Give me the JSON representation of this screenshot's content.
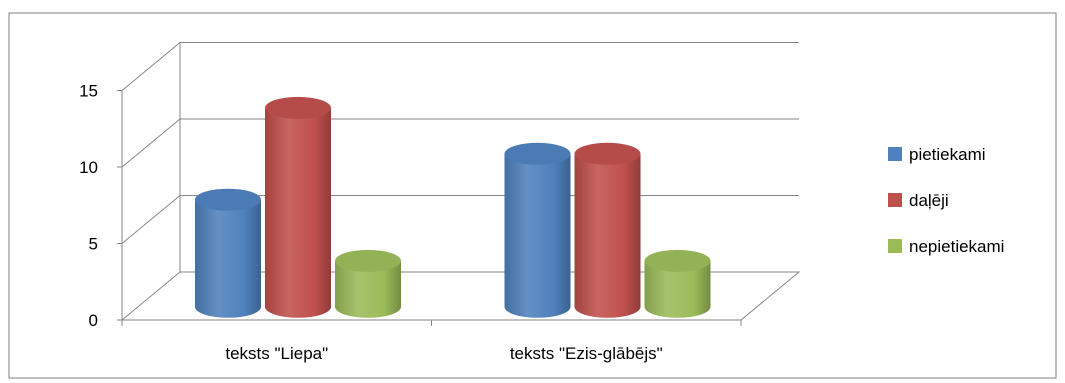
{
  "chart_data": {
    "type": "bar",
    "style": "3d-cylinder",
    "categories": [
      "teksts \"Liepa\"",
      "teksts \"Ezis-glābējs\""
    ],
    "series": [
      {
        "name": "pietiekami",
        "values": [
          7,
          10
        ],
        "color": "#4f81bd"
      },
      {
        "name": "daļēji",
        "values": [
          13,
          10
        ],
        "color": "#c0504d"
      },
      {
        "name": "nepietiekami",
        "values": [
          3,
          3
        ],
        "color": "#9bbb59"
      }
    ],
    "y_ticks": [
      "0",
      "5",
      "10",
      "15"
    ],
    "ylim": [
      0,
      15
    ],
    "grid": true,
    "legend_position": "right",
    "title": "",
    "xlabel": "",
    "ylabel": ""
  }
}
